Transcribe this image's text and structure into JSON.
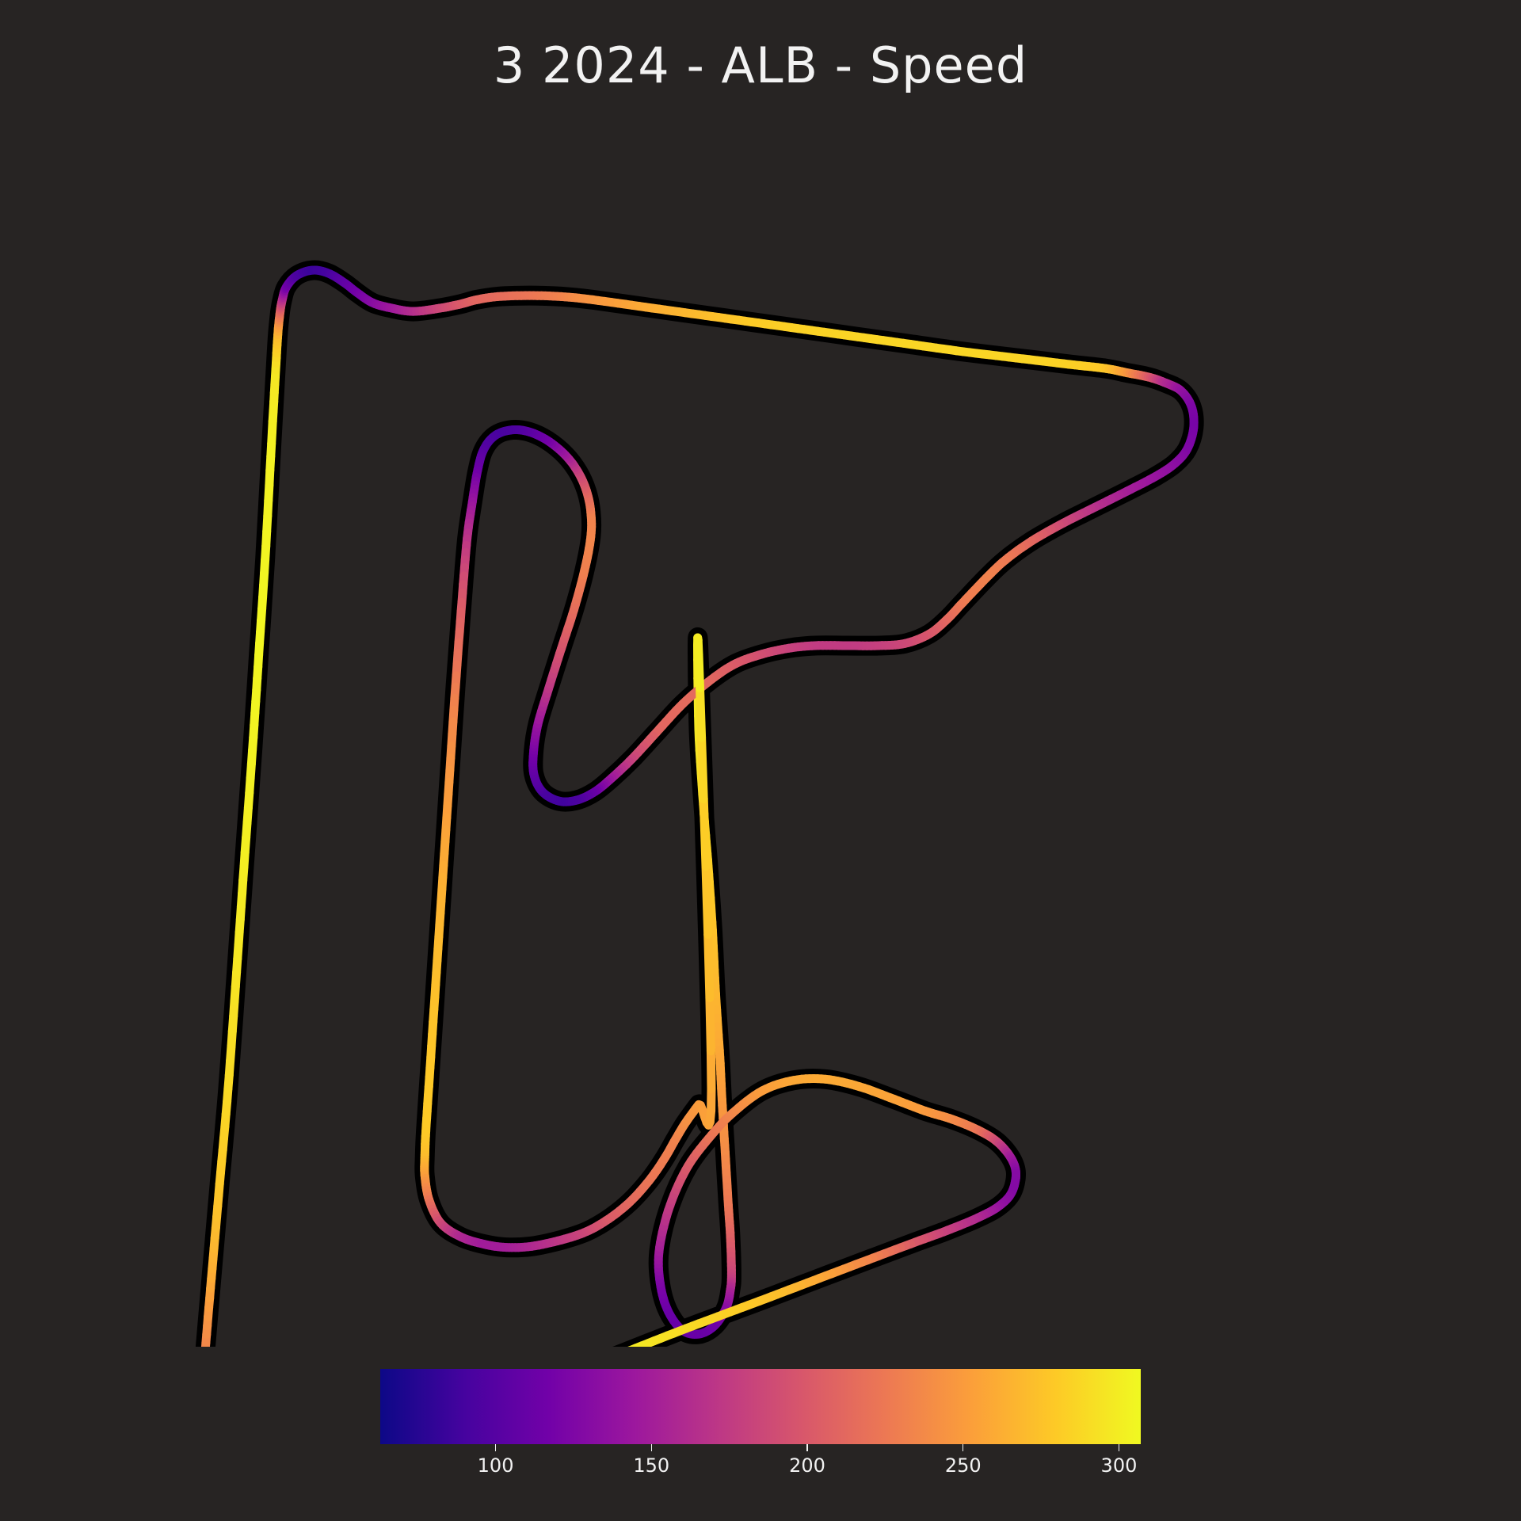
{
  "chart_data": {
    "type": "line",
    "title": "3 2024 - ALB - Speed",
    "colorbar": {
      "min": 63,
      "max": 307,
      "ticks": [
        100,
        150,
        200,
        250,
        300
      ],
      "tick_labels": [
        "100",
        "150",
        "200",
        "250",
        "300"
      ],
      "colormap": [
        "#0d0887",
        "#46039f",
        "#7201a8",
        "#9c179e",
        "#bd3786",
        "#d8576b",
        "#ed7953",
        "#fb9f3a",
        "#fdca26",
        "#f0f921"
      ]
    },
    "track": {
      "series_name": "",
      "points": [
        {
          "x": 0.0,
          "y": 0.0,
          "speed": 300
        },
        {
          "x": 0.0,
          "y": 7.0,
          "speed": 297
        },
        {
          "x": 0.5,
          "y": 15.0,
          "speed": 290
        },
        {
          "x": 0.9,
          "y": 20.0,
          "speed": 283
        },
        {
          "x": 1.3,
          "y": 26.0,
          "speed": 275
        },
        {
          "x": 1.6,
          "y": 32.0,
          "speed": 268
        },
        {
          "x": 2.0,
          "y": 38.0,
          "speed": 258
        },
        {
          "x": 2.2,
          "y": 42.0,
          "speed": 250
        },
        {
          "x": 2.5,
          "y": 47.0,
          "speed": 240
        },
        {
          "x": 2.8,
          "y": 52.0,
          "speed": 225
        },
        {
          "x": 3.0,
          "y": 55.0,
          "speed": 208
        },
        {
          "x": 3.1,
          "y": 58.5,
          "speed": 185
        },
        {
          "x": 3.0,
          "y": 60.0,
          "speed": 160
        },
        {
          "x": 2.6,
          "y": 61.7,
          "speed": 135
        },
        {
          "x": 1.5,
          "y": 63.4,
          "speed": 115
        },
        {
          "x": 0.0,
          "y": 64.2,
          "speed": 112
        },
        {
          "x": -1.6,
          "y": 63.8,
          "speed": 110
        },
        {
          "x": -3.0,
          "y": 61.8,
          "speed": 112
        },
        {
          "x": -3.7,
          "y": 59.0,
          "speed": 125
        },
        {
          "x": -3.7,
          "y": 56.0,
          "speed": 150
        },
        {
          "x": -2.7,
          "y": 52.0,
          "speed": 175
        },
        {
          "x": -1.0,
          "y": 48.3,
          "speed": 200
        },
        {
          "x": 1.2,
          "y": 45.4,
          "speed": 222
        },
        {
          "x": 3.2,
          "y": 43.3,
          "speed": 235
        },
        {
          "x": 6.0,
          "y": 41.2,
          "speed": 250
        },
        {
          "x": 9.0,
          "y": 40.2,
          "speed": 258
        },
        {
          "x": 12.0,
          "y": 40.1,
          "speed": 260
        },
        {
          "x": 15.2,
          "y": 40.8,
          "speed": 258
        },
        {
          "x": 18.5,
          "y": 42.0,
          "speed": 255
        },
        {
          "x": 21.4,
          "y": 43.1,
          "speed": 250
        },
        {
          "x": 24.0,
          "y": 43.9,
          "speed": 240
        },
        {
          "x": 26.4,
          "y": 44.9,
          "speed": 225
        },
        {
          "x": 28.2,
          "y": 46.0,
          "speed": 190
        },
        {
          "x": 29.5,
          "y": 47.5,
          "speed": 150
        },
        {
          "x": 30.0,
          "y": 49.0,
          "speed": 130
        },
        {
          "x": 29.6,
          "y": 50.8,
          "speed": 128
        },
        {
          "x": 28.4,
          "y": 52.1,
          "speed": 138
        },
        {
          "x": 26.4,
          "y": 53.2,
          "speed": 158
        },
        {
          "x": 23.5,
          "y": 54.4,
          "speed": 178
        },
        {
          "x": 20.5,
          "y": 55.5,
          "speed": 198
        },
        {
          "x": 16.5,
          "y": 57.0,
          "speed": 230
        },
        {
          "x": 12.0,
          "y": 58.7,
          "speed": 255
        },
        {
          "x": 7.4,
          "y": 60.45,
          "speed": 272
        },
        {
          "x": 3.0,
          "y": 62.1,
          "speed": 282
        },
        {
          "x": -1.8,
          "y": 63.9,
          "speed": 290
        },
        {
          "x": -6.5,
          "y": 65.75,
          "speed": 298
        },
        {
          "x": -10.4,
          "y": 67.27,
          "speed": 300
        },
        {
          "x": -15.0,
          "y": 69.0,
          "speed": 302
        },
        {
          "x": -20.0,
          "y": 70.9,
          "speed": 302
        },
        {
          "x": -25.0,
          "y": 72.85,
          "speed": 300
        },
        {
          "x": -30.0,
          "y": 74.8,
          "speed": 292
        },
        {
          "x": -35.0,
          "y": 76.8,
          "speed": 275
        },
        {
          "x": -38.0,
          "y": 77.9,
          "speed": 240
        },
        {
          "x": -40.2,
          "y": 78.6,
          "speed": 190
        },
        {
          "x": -42.0,
          "y": 78.75,
          "speed": 150
        },
        {
          "x": -43.9,
          "y": 78.4,
          "speed": 138
        },
        {
          "x": -45.5,
          "y": 77.0,
          "speed": 140
        },
        {
          "x": -46.5,
          "y": 75.0,
          "speed": 150
        },
        {
          "x": -47.0,
          "y": 72.5,
          "speed": 175
        },
        {
          "x": -47.0,
          "y": 70.0,
          "speed": 200
        },
        {
          "x": -46.6,
          "y": 65.0,
          "speed": 235
        },
        {
          "x": -46.0,
          "y": 58.0,
          "speed": 262
        },
        {
          "x": -45.3,
          "y": 50.0,
          "speed": 278
        },
        {
          "x": -44.5,
          "y": 41.0,
          "speed": 288
        },
        {
          "x": -43.7,
          "y": 30.0,
          "speed": 295
        },
        {
          "x": -43.0,
          "y": 20.0,
          "speed": 300
        },
        {
          "x": -42.2,
          "y": 9.0,
          "speed": 303
        },
        {
          "x": -41.6,
          "y": 0.0,
          "speed": 305
        },
        {
          "x": -41.0,
          "y": -9.0,
          "speed": 304
        },
        {
          "x": -40.4,
          "y": -20.0,
          "speed": 302
        },
        {
          "x": -40.0,
          "y": -27.0,
          "speed": 296
        },
        {
          "x": -39.8,
          "y": -30.3,
          "speed": 270
        },
        {
          "x": -39.6,
          "y": -32.3,
          "speed": 220
        },
        {
          "x": -39.4,
          "y": -33.5,
          "speed": 175
        },
        {
          "x": -39.0,
          "y": -34.8,
          "speed": 120
        },
        {
          "x": -38.0,
          "y": -35.9,
          "speed": 95
        },
        {
          "x": -36.5,
          "y": -36.4,
          "speed": 85
        },
        {
          "x": -35.0,
          "y": -36.1,
          "speed": 90
        },
        {
          "x": -33.5,
          "y": -35.2,
          "speed": 105
        },
        {
          "x": -32.2,
          "y": -34.2,
          "speed": 118
        },
        {
          "x": -30.8,
          "y": -33.3,
          "speed": 130
        },
        {
          "x": -29.0,
          "y": -32.8,
          "speed": 145
        },
        {
          "x": -27.0,
          "y": -32.5,
          "speed": 162
        },
        {
          "x": -24.5,
          "y": -32.8,
          "speed": 185
        },
        {
          "x": -22.5,
          "y": -33.2,
          "speed": 200
        },
        {
          "x": -21.0,
          "y": -33.6,
          "speed": 210
        },
        {
          "x": -19.0,
          "y": -33.9,
          "speed": 215
        },
        {
          "x": -16.0,
          "y": -34.0,
          "speed": 222
        },
        {
          "x": -13.0,
          "y": -33.9,
          "speed": 232
        },
        {
          "x": -10.0,
          "y": -33.6,
          "speed": 245
        },
        {
          "x": -5.0,
          "y": -32.9,
          "speed": 260
        },
        {
          "x": 0.0,
          "y": -32.2,
          "speed": 270
        },
        {
          "x": 5.0,
          "y": -31.5,
          "speed": 280
        },
        {
          "x": 10.0,
          "y": -30.8,
          "speed": 284
        },
        {
          "x": 15.0,
          "y": -30.1,
          "speed": 286
        },
        {
          "x": 20.0,
          "y": -29.4,
          "speed": 287
        },
        {
          "x": 25.0,
          "y": -28.7,
          "speed": 287
        },
        {
          "x": 30.0,
          "y": -28.1,
          "speed": 286
        },
        {
          "x": 35.0,
          "y": -27.5,
          "speed": 284
        },
        {
          "x": 38.5,
          "y": -27.1,
          "speed": 278
        },
        {
          "x": 40.5,
          "y": -26.7,
          "speed": 250
        },
        {
          "x": 42.5,
          "y": -26.3,
          "speed": 205
        },
        {
          "x": 44.0,
          "y": -25.8,
          "speed": 165
        },
        {
          "x": 45.6,
          "y": -25.0,
          "speed": 140
        },
        {
          "x": 46.6,
          "y": -23.5,
          "speed": 125
        },
        {
          "x": 46.8,
          "y": -21.5,
          "speed": 120
        },
        {
          "x": 46.2,
          "y": -19.5,
          "speed": 125
        },
        {
          "x": 45.0,
          "y": -18.1,
          "speed": 132
        },
        {
          "x": 43.2,
          "y": -16.9,
          "speed": 140
        },
        {
          "x": 40.5,
          "y": -15.5,
          "speed": 150
        },
        {
          "x": 37.5,
          "y": -14.0,
          "speed": 165
        },
        {
          "x": 34.5,
          "y": -12.5,
          "speed": 185
        },
        {
          "x": 31.5,
          "y": -10.8,
          "speed": 210
        },
        {
          "x": 29.0,
          "y": -9.0,
          "speed": 225
        },
        {
          "x": 27.2,
          "y": -7.3,
          "speed": 232
        },
        {
          "x": 25.0,
          "y": -5.0,
          "speed": 228
        },
        {
          "x": 23.5,
          "y": -3.4,
          "speed": 215
        },
        {
          "x": 21.8,
          "y": -2.0,
          "speed": 200
        },
        {
          "x": 19.5,
          "y": -1.1,
          "speed": 188
        },
        {
          "x": 17.0,
          "y": -0.9,
          "speed": 180
        },
        {
          "x": 14.0,
          "y": -0.9,
          "speed": 175
        },
        {
          "x": 11.0,
          "y": -0.9,
          "speed": 175
        },
        {
          "x": 8.5,
          "y": -0.65,
          "speed": 180
        },
        {
          "x": 6.0,
          "y": -0.1,
          "speed": 190
        },
        {
          "x": 3.5,
          "y": 0.8,
          "speed": 200
        },
        {
          "x": 1.2,
          "y": 2.3,
          "speed": 210
        },
        {
          "x": -1.5,
          "y": 4.6,
          "speed": 215
        },
        {
          "x": -4.0,
          "y": 7.3,
          "speed": 210
        },
        {
          "x": -6.3,
          "y": 9.8,
          "speed": 185
        },
        {
          "x": -8.2,
          "y": 11.6,
          "speed": 150
        },
        {
          "x": -9.8,
          "y": 12.9,
          "speed": 115
        },
        {
          "x": -11.5,
          "y": 13.7,
          "speed": 95
        },
        {
          "x": -13.2,
          "y": 13.8,
          "speed": 88
        },
        {
          "x": -14.8,
          "y": 12.9,
          "speed": 92
        },
        {
          "x": -15.6,
          "y": 11.2,
          "speed": 105
        },
        {
          "x": -15.6,
          "y": 9.0,
          "speed": 120
        },
        {
          "x": -15.2,
          "y": 6.5,
          "speed": 140
        },
        {
          "x": -14.2,
          "y": 3.2,
          "speed": 170
        },
        {
          "x": -13.0,
          "y": -0.6,
          "speed": 195
        },
        {
          "x": -11.8,
          "y": -4.3,
          "speed": 215
        },
        {
          "x": -10.8,
          "y": -8.0,
          "speed": 230
        },
        {
          "x": -10.2,
          "y": -11.2,
          "speed": 235
        },
        {
          "x": -10.2,
          "y": -13.5,
          "speed": 232
        },
        {
          "x": -10.6,
          "y": -15.5,
          "speed": 210
        },
        {
          "x": -11.4,
          "y": -17.3,
          "speed": 185
        },
        {
          "x": -12.6,
          "y": -18.9,
          "speed": 150
        },
        {
          "x": -14.3,
          "y": -20.3,
          "speed": 120
        },
        {
          "x": -16.0,
          "y": -21.1,
          "speed": 105
        },
        {
          "x": -17.6,
          "y": -21.3,
          "speed": 95
        },
        {
          "x": -19.2,
          "y": -20.8,
          "speed": 92
        },
        {
          "x": -20.3,
          "y": -19.5,
          "speed": 98
        },
        {
          "x": -20.9,
          "y": -17.5,
          "speed": 112
        },
        {
          "x": -21.4,
          "y": -14.5,
          "speed": 140
        },
        {
          "x": -21.9,
          "y": -11.0,
          "speed": 168
        },
        {
          "x": -22.4,
          "y": -5.0,
          "speed": 200
        },
        {
          "x": -23.0,
          "y": 3.0,
          "speed": 228
        },
        {
          "x": -23.6,
          "y": 12.0,
          "speed": 248
        },
        {
          "x": -24.2,
          "y": 21.0,
          "speed": 262
        },
        {
          "x": -24.8,
          "y": 30.0,
          "speed": 272
        },
        {
          "x": -25.4,
          "y": 39.0,
          "speed": 278
        },
        {
          "x": -25.8,
          "y": 45.0,
          "speed": 280
        },
        {
          "x": -25.9,
          "y": 47.5,
          "speed": 272
        },
        {
          "x": -25.9,
          "y": 49.2,
          "speed": 255
        },
        {
          "x": -25.5,
          "y": 51.5,
          "speed": 225
        },
        {
          "x": -24.4,
          "y": 53.7,
          "speed": 190
        },
        {
          "x": -22.5,
          "y": 55.0,
          "speed": 160
        },
        {
          "x": -20.3,
          "y": 55.7,
          "speed": 148
        },
        {
          "x": -18.2,
          "y": 56.0,
          "speed": 150
        },
        {
          "x": -15.8,
          "y": 55.9,
          "speed": 158
        },
        {
          "x": -13.0,
          "y": 55.3,
          "speed": 172
        },
        {
          "x": -10.6,
          "y": 54.5,
          "speed": 185
        },
        {
          "x": -8.5,
          "y": 53.3,
          "speed": 200
        },
        {
          "x": -6.5,
          "y": 51.7,
          "speed": 212
        },
        {
          "x": -4.7,
          "y": 49.7,
          "speed": 222
        },
        {
          "x": -3.3,
          "y": 47.7,
          "speed": 228
        },
        {
          "x": -2.2,
          "y": 45.8,
          "speed": 232
        },
        {
          "x": -1.3,
          "y": 44.3,
          "speed": 240
        },
        {
          "x": 0.0,
          "y": 42.5,
          "speed": 250
        },
        {
          "x": 1.2,
          "y": 41.0,
          "speed": 258
        }
      ]
    }
  }
}
